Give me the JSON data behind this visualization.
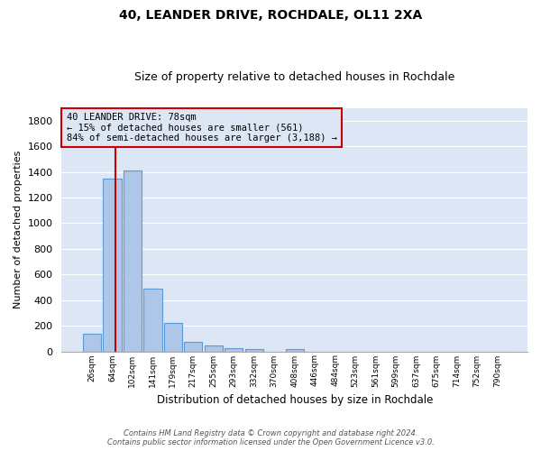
{
  "title": "40, LEANDER DRIVE, ROCHDALE, OL11 2XA",
  "subtitle": "Size of property relative to detached houses in Rochdale",
  "xlabel": "Distribution of detached houses by size in Rochdale",
  "ylabel": "Number of detached properties",
  "bar_values": [
    135,
    1350,
    1410,
    490,
    225,
    75,
    45,
    28,
    15,
    0,
    20,
    0,
    0,
    0,
    0,
    0,
    0,
    0,
    0,
    0,
    0
  ],
  "x_labels": [
    "26sqm",
    "64sqm",
    "102sqm",
    "141sqm",
    "179sqm",
    "217sqm",
    "255sqm",
    "293sqm",
    "332sqm",
    "370sqm",
    "408sqm",
    "446sqm",
    "484sqm",
    "523sqm",
    "561sqm",
    "599sqm",
    "637sqm",
    "675sqm",
    "714sqm",
    "752sqm",
    "790sqm"
  ],
  "bar_color": "#aec6e8",
  "bar_edge_color": "#5b9bd5",
  "fig_background_color": "#ffffff",
  "ax_background_color": "#dce6f5",
  "grid_color": "#ffffff",
  "vline_x": 1.15,
  "vline_color": "#cc0000",
  "annotation_text": "40 LEANDER DRIVE: 78sqm\n← 15% of detached houses are smaller (561)\n84% of semi-detached houses are larger (3,188) →",
  "annotation_box_color": "#cc0000",
  "ylim": [
    0,
    1900
  ],
  "yticks": [
    0,
    200,
    400,
    600,
    800,
    1000,
    1200,
    1400,
    1600,
    1800
  ],
  "footer_line1": "Contains HM Land Registry data © Crown copyright and database right 2024.",
  "footer_line2": "Contains public sector information licensed under the Open Government Licence v3.0.",
  "title_fontsize": 10,
  "subtitle_fontsize": 9
}
